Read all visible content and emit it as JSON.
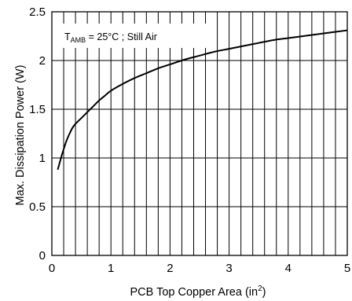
{
  "chart_data": {
    "type": "line",
    "xlabel_main": "PCB Top Copper Area (in",
    "xlabel_sup": "2",
    "xlabel_close": ")",
    "ylabel": "Max. Dissipation Power (W)",
    "annotation": {
      "prefix": "T",
      "subscript": "AMB",
      "rest": " = 25°C  ;  Still Air"
    },
    "xlim": [
      0,
      5
    ],
    "ylim": [
      0,
      2.5
    ],
    "x_ticks": [
      {
        "value": 0,
        "label": "0"
      },
      {
        "value": 1,
        "label": "1"
      },
      {
        "value": 2,
        "label": "2"
      },
      {
        "value": 3,
        "label": "3"
      },
      {
        "value": 4,
        "label": "4"
      },
      {
        "value": 5,
        "label": "5"
      }
    ],
    "y_ticks": [
      {
        "value": 0,
        "label": "0"
      },
      {
        "value": 0.5,
        "label": "0.5"
      },
      {
        "value": 1,
        "label": "1"
      },
      {
        "value": 1.5,
        "label": "1.5"
      },
      {
        "value": 2,
        "label": "2"
      },
      {
        "value": 2.5,
        "label": "2.5"
      }
    ],
    "x_minor_step": 0.2,
    "grid": true,
    "series": [
      {
        "x": [
          0.1,
          0.15,
          0.2,
          0.25,
          0.3,
          0.35,
          0.4,
          0.5,
          0.6,
          0.7,
          0.8,
          0.9,
          1.0,
          1.2,
          1.4,
          1.6,
          1.8,
          2.0,
          2.25,
          2.5,
          2.75,
          3.0,
          3.25,
          3.5,
          3.75,
          4.0,
          4.25,
          4.5,
          4.75,
          5.0
        ],
        "y": [
          0.88,
          0.99,
          1.09,
          1.18,
          1.25,
          1.31,
          1.35,
          1.41,
          1.47,
          1.53,
          1.59,
          1.64,
          1.69,
          1.76,
          1.82,
          1.87,
          1.92,
          1.96,
          2.01,
          2.05,
          2.09,
          2.12,
          2.15,
          2.18,
          2.21,
          2.23,
          2.25,
          2.27,
          2.29,
          2.31
        ]
      }
    ],
    "colors": {
      "line": "#000000",
      "grid": "#000000",
      "background": "#ffffff"
    }
  }
}
